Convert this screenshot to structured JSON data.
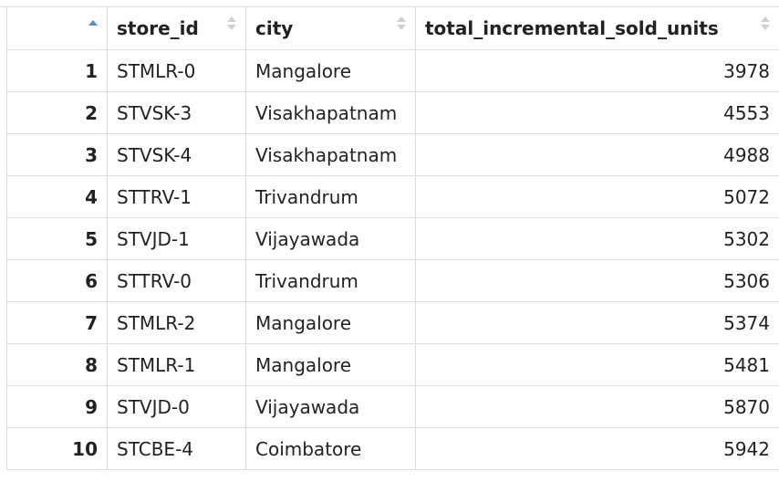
{
  "table": {
    "columns": [
      {
        "key": "index",
        "label": ""
      },
      {
        "key": "store_id",
        "label": "store_id"
      },
      {
        "key": "city",
        "label": "city"
      },
      {
        "key": "total_incremental_sold_units",
        "label": "total_incremental_sold_units"
      }
    ],
    "sort_indicator": "arrow-up-icon",
    "sort_color": "#4a90d9",
    "rows": [
      {
        "index": "1",
        "store_id": "STMLR-0",
        "city": "Mangalore",
        "total_incremental_sold_units": "3978"
      },
      {
        "index": "2",
        "store_id": "STVSK-3",
        "city": "Visakhapatnam",
        "total_incremental_sold_units": "4553"
      },
      {
        "index": "3",
        "store_id": "STVSK-4",
        "city": "Visakhapatnam",
        "total_incremental_sold_units": "4988"
      },
      {
        "index": "4",
        "store_id": "STTRV-1",
        "city": "Trivandrum",
        "total_incremental_sold_units": "5072"
      },
      {
        "index": "5",
        "store_id": "STVJD-1",
        "city": "Vijayawada",
        "total_incremental_sold_units": "5302"
      },
      {
        "index": "6",
        "store_id": "STTRV-0",
        "city": "Trivandrum",
        "total_incremental_sold_units": "5306"
      },
      {
        "index": "7",
        "store_id": "STMLR-2",
        "city": "Mangalore",
        "total_incremental_sold_units": "5374"
      },
      {
        "index": "8",
        "store_id": "STMLR-1",
        "city": "Mangalore",
        "total_incremental_sold_units": "5481"
      },
      {
        "index": "9",
        "store_id": "STVJD-0",
        "city": "Vijayawada",
        "total_incremental_sold_units": "5870"
      },
      {
        "index": "10",
        "store_id": "STCBE-4",
        "city": "Coimbatore",
        "total_incremental_sold_units": "5942"
      }
    ]
  }
}
